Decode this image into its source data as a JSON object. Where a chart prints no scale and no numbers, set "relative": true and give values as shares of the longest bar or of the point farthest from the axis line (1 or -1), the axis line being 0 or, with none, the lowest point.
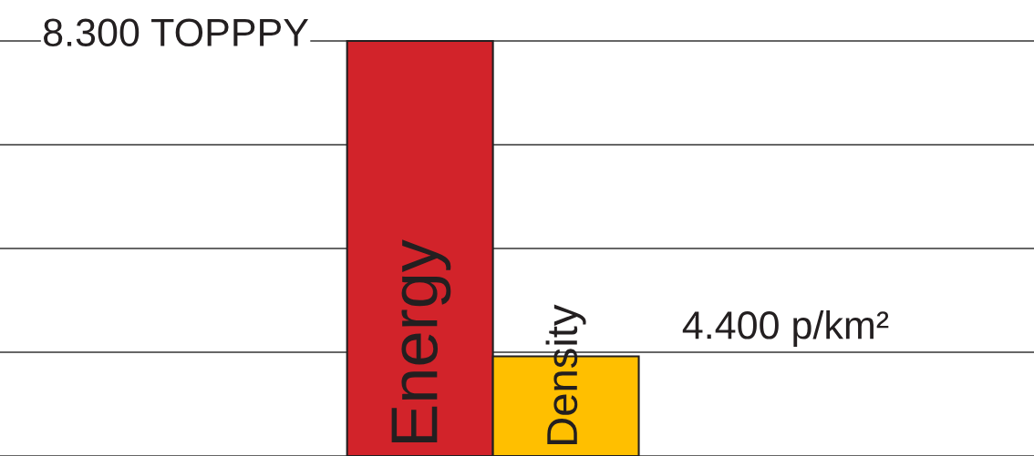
{
  "chart_data": {
    "type": "bar",
    "relative": true,
    "categories": [
      "Energy",
      "Density"
    ],
    "values": [
      1,
      0.24
    ],
    "colors": [
      "#d2232a",
      "#ffbf00"
    ],
    "grid": "y",
    "annotations": [
      {
        "text": "8.300 TOPPPY",
        "x": "Energy",
        "y": 1
      },
      {
        "text": "4.400 p/km²",
        "x": "Density",
        "y": 0.24
      }
    ]
  }
}
